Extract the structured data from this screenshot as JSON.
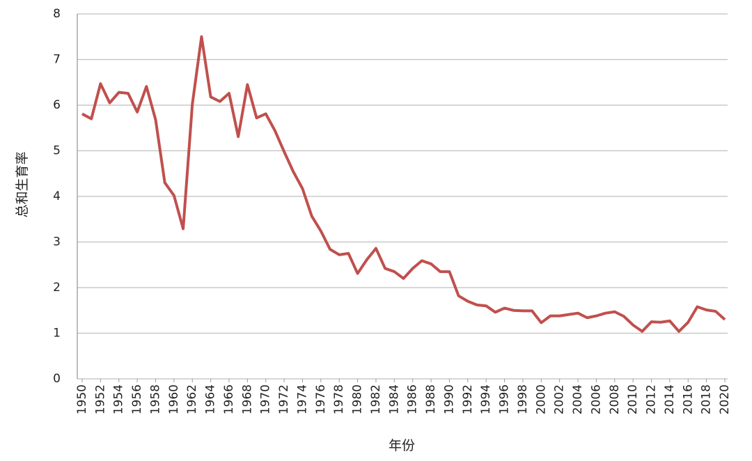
{
  "chart_data": {
    "type": "line",
    "y_label": "总和生育率",
    "x_label": "年份",
    "color": "#c0504d",
    "grid": true,
    "x": [
      1950,
      1951,
      1952,
      1953,
      1954,
      1955,
      1956,
      1957,
      1958,
      1959,
      1960,
      1961,
      1962,
      1963,
      1964,
      1965,
      1966,
      1967,
      1968,
      1969,
      1970,
      1971,
      1972,
      1973,
      1974,
      1975,
      1976,
      1977,
      1978,
      1979,
      1980,
      1981,
      1982,
      1983,
      1984,
      1985,
      1986,
      1987,
      1988,
      1989,
      1990,
      1991,
      1992,
      1993,
      1994,
      1995,
      1996,
      1997,
      1998,
      1999,
      2000,
      2001,
      2002,
      2003,
      2004,
      2005,
      2006,
      2007,
      2008,
      2009,
      2010,
      2011,
      2012,
      2013,
      2014,
      2015,
      2016,
      2017,
      2018,
      2019,
      2020
    ],
    "values": [
      5.81,
      5.7,
      6.47,
      6.05,
      6.28,
      6.26,
      5.85,
      6.41,
      5.68,
      4.3,
      4.02,
      3.29,
      6.02,
      7.5,
      6.18,
      6.08,
      6.26,
      5.31,
      6.45,
      5.72,
      5.81,
      5.44,
      4.98,
      4.54,
      4.17,
      3.57,
      3.24,
      2.84,
      2.72,
      2.75,
      2.31,
      2.61,
      2.86,
      2.42,
      2.35,
      2.2,
      2.42,
      2.59,
      2.52,
      2.35,
      2.35,
      1.82,
      1.7,
      1.62,
      1.6,
      1.46,
      1.55,
      1.5,
      1.49,
      1.49,
      1.23,
      1.38,
      1.38,
      1.41,
      1.44,
      1.34,
      1.38,
      1.44,
      1.47,
      1.37,
      1.18,
      1.04,
      1.25,
      1.24,
      1.27,
      1.04,
      1.24,
      1.58,
      1.51,
      1.48,
      1.3
    ],
    "xlim": [
      1950,
      2020
    ],
    "xticks": [
      1950,
      1952,
      1954,
      1956,
      1958,
      1960,
      1962,
      1964,
      1966,
      1968,
      1970,
      1972,
      1974,
      1976,
      1978,
      1980,
      1982,
      1984,
      1986,
      1988,
      1990,
      1992,
      1994,
      1996,
      1998,
      2000,
      2002,
      2004,
      2006,
      2008,
      2010,
      2012,
      2014,
      2016,
      2018,
      2020
    ],
    "ylim": [
      0,
      8
    ],
    "yticks": [
      0,
      1,
      2,
      3,
      4,
      5,
      6,
      7,
      8
    ]
  }
}
